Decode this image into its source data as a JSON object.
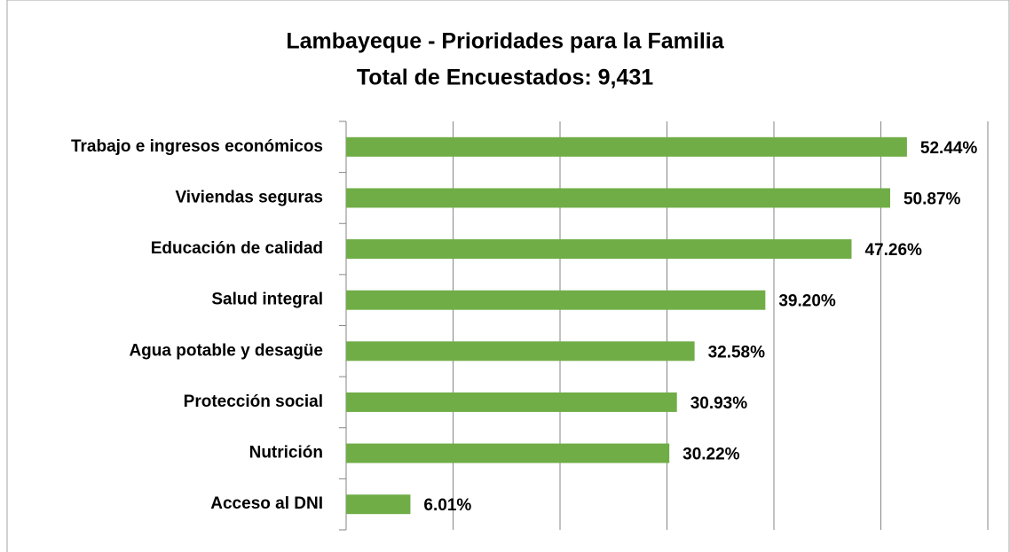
{
  "chart_data": {
    "type": "barh",
    "title": "Lambayeque - Prioridades para la Familia",
    "subtitle": "Total de Encuestados: 9,431",
    "categories": [
      "Trabajo e ingresos económicos",
      "Viviendas seguras",
      "Educación de calidad",
      "Salud integral",
      "Agua potable y desagüe",
      "Protección social",
      "Nutrición",
      "Acceso al DNI"
    ],
    "values": [
      52.44,
      50.87,
      47.26,
      39.2,
      32.58,
      30.93,
      30.22,
      6.01
    ],
    "value_labels": [
      "52.44%",
      "50.87%",
      "47.26%",
      "39.20%",
      "32.58%",
      "30.93%",
      "30.22%",
      "6.01%"
    ],
    "color": "#70ad47",
    "xlim": [
      0,
      60
    ],
    "xticks": [
      0,
      10,
      20,
      30,
      40,
      50,
      60
    ],
    "grid": true
  }
}
